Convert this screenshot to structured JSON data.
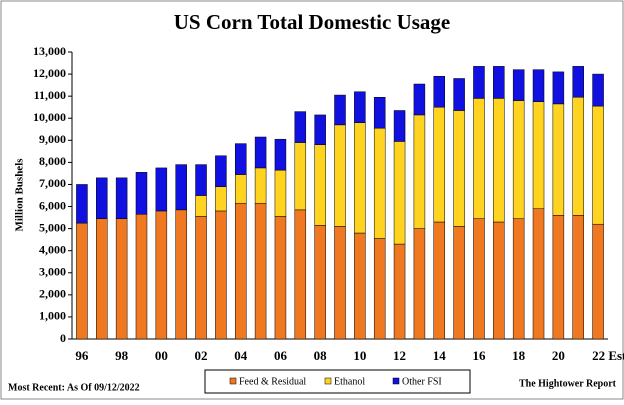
{
  "chart_data": {
    "type": "stacked-bar",
    "title": "US Corn Total Domestic Usage",
    "y_label": "Million Bushels",
    "categories": [
      "96",
      null,
      "98",
      null,
      "00",
      null,
      "02",
      null,
      "04",
      null,
      "06",
      null,
      "08",
      null,
      "10",
      null,
      "12",
      null,
      "14",
      null,
      "16",
      null,
      "18",
      null,
      "20",
      null,
      "22 Est"
    ],
    "series": [
      {
        "name": "Feed & Residual",
        "color": "#f07820",
        "values": [
          5250,
          5450,
          5450,
          5650,
          5800,
          5850,
          5550,
          5800,
          6150,
          6150,
          5550,
          5850,
          5150,
          5100,
          4800,
          4550,
          4300,
          5000,
          5300,
          5100,
          5450,
          5300,
          5450,
          5900,
          5600,
          5600,
          5200
        ]
      },
      {
        "name": "Ethanol",
        "color": "#ffd320",
        "values": [
          0,
          0,
          0,
          0,
          0,
          0,
          950,
          1100,
          1300,
          1600,
          2100,
          3050,
          3650,
          4600,
          5000,
          5000,
          4650,
          5150,
          5200,
          5250,
          5450,
          5600,
          5350,
          4850,
          5050,
          5350,
          5350
        ]
      },
      {
        "name": "Other FSI",
        "color": "#1010e0",
        "values": [
          1750,
          1850,
          1850,
          1900,
          1950,
          2050,
          1400,
          1400,
          1400,
          1400,
          1400,
          1400,
          1350,
          1350,
          1400,
          1400,
          1400,
          1400,
          1400,
          1450,
          1450,
          1450,
          1400,
          1450,
          1450,
          1400,
          1450
        ]
      }
    ],
    "ylim": [
      0,
      13000
    ],
    "yticks": [
      0,
      {
        "value": 1000,
        "label": "1,000"
      },
      {
        "value": 2000,
        "label": "2,000"
      },
      {
        "value": 3000,
        "label": "3,000"
      },
      {
        "value": 4000,
        "label": "4,000"
      },
      {
        "value": 5000,
        "label": "5,000"
      },
      {
        "value": 6000,
        "label": "6,000"
      },
      {
        "value": 7000,
        "label": "7,000"
      },
      {
        "value": 8000,
        "label": "8,000"
      },
      {
        "value": 9000,
        "label": "9,000"
      },
      {
        "value": 10000,
        "label": "10,000"
      },
      {
        "value": 11000,
        "label": "11,000"
      },
      {
        "value": 12000,
        "label": "12,000"
      },
      {
        "value": 13000,
        "label": "13,000"
      }
    ],
    "grid": false,
    "legend": "bottom",
    "footnote_left": "Most Recent: As Of 09/12/2022",
    "footnote_right": "The Hightower Report"
  }
}
